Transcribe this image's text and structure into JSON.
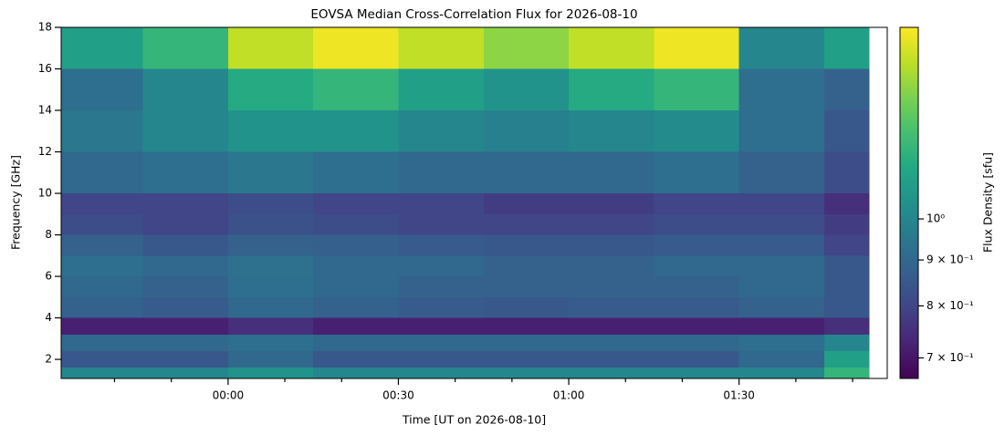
{
  "chart_data": {
    "type": "heatmap",
    "title": "EOVSA Median Cross-Correlation Flux for 2026-08-10",
    "x_label": "Time [UT on 2026-08-10]",
    "y_label": "Frequency [GHz]",
    "colorbar_label": "Flux Density [sfu]",
    "colormap": "viridis",
    "color_log_scale": true,
    "xlim": [
      -29.4,
      116.1
    ],
    "xticks": [
      {
        "value": 0,
        "label": "00:00"
      },
      {
        "value": 30,
        "label": "00:30"
      },
      {
        "value": 60,
        "label": "01:00"
      },
      {
        "value": 90,
        "label": "01:30"
      }
    ],
    "xminorticks": [
      -20,
      -10,
      10,
      20,
      40,
      50,
      70,
      80,
      100,
      110
    ],
    "ylim": [
      1.08,
      18
    ],
    "yticks": [
      2,
      4,
      6,
      8,
      10,
      12,
      14,
      16,
      18
    ],
    "clim": [
      0.664,
      1.635
    ],
    "cticks": [
      {
        "value": 1,
        "label": "10⁰"
      },
      {
        "value": 0.9,
        "label": "9 × 10⁻¹"
      },
      {
        "value": 0.8,
        "label": "8 × 10⁻¹"
      },
      {
        "value": 0.7,
        "label": "7 × 10⁻¹"
      }
    ],
    "x_edges": [
      -29.4,
      -15,
      0,
      15,
      30,
      45,
      60,
      75,
      90,
      105,
      113
    ],
    "y_edges": [
      1.08,
      1.6,
      2.4,
      3.2,
      4,
      5,
      6,
      7,
      8,
      9,
      10,
      12,
      14,
      16,
      18
    ],
    "values": [
      [
        1.0,
        1.0,
        1.05,
        1.0,
        1.0,
        1.0,
        1.0,
        1.0,
        1.0,
        1.2
      ],
      [
        0.85,
        0.85,
        0.9,
        0.85,
        0.85,
        0.85,
        0.85,
        0.85,
        0.9,
        1.1
      ],
      [
        0.9,
        0.9,
        0.92,
        0.9,
        0.9,
        0.9,
        0.9,
        0.9,
        0.92,
        1.0
      ],
      [
        0.72,
        0.72,
        0.75,
        0.72,
        0.72,
        0.72,
        0.72,
        0.72,
        0.72,
        0.75
      ],
      [
        0.88,
        0.86,
        0.9,
        0.88,
        0.86,
        0.85,
        0.86,
        0.86,
        0.88,
        0.85
      ],
      [
        0.9,
        0.88,
        0.92,
        0.9,
        0.88,
        0.88,
        0.88,
        0.88,
        0.9,
        0.85
      ],
      [
        0.92,
        0.9,
        0.93,
        0.9,
        0.9,
        0.88,
        0.88,
        0.9,
        0.9,
        0.85
      ],
      [
        0.88,
        0.85,
        0.88,
        0.87,
        0.86,
        0.85,
        0.85,
        0.86,
        0.86,
        0.8
      ],
      [
        0.82,
        0.8,
        0.83,
        0.82,
        0.8,
        0.8,
        0.8,
        0.82,
        0.82,
        0.78
      ],
      [
        0.8,
        0.8,
        0.82,
        0.8,
        0.8,
        0.78,
        0.78,
        0.8,
        0.8,
        0.75
      ],
      [
        0.9,
        0.92,
        0.95,
        0.92,
        0.9,
        0.9,
        0.9,
        0.92,
        0.88,
        0.82
      ],
      [
        0.95,
        1.0,
        1.05,
        1.05,
        1.0,
        0.98,
        1.0,
        1.02,
        0.92,
        0.85
      ],
      [
        0.92,
        1.0,
        1.15,
        1.2,
        1.1,
        1.05,
        1.15,
        1.2,
        0.92,
        0.88
      ],
      [
        1.1,
        1.2,
        1.5,
        1.6,
        1.5,
        1.4,
        1.5,
        1.6,
        1.0,
        1.1
      ]
    ]
  }
}
